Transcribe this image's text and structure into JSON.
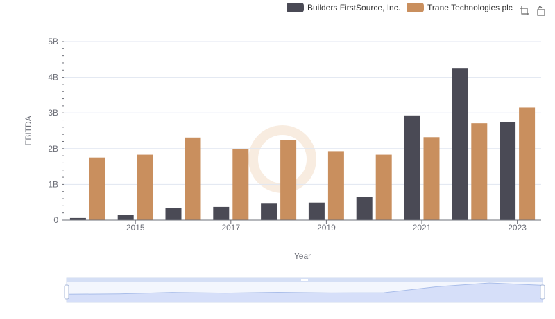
{
  "legend": [
    {
      "label": "Builders FirstSource, Inc.",
      "color": "#4a4a55"
    },
    {
      "label": "Trane Technologies plc",
      "color": "#c98f5e"
    }
  ],
  "toolbox": {
    "icons": [
      "zoom-icon",
      "restore-icon"
    ]
  },
  "chart_data": {
    "type": "bar",
    "xlabel": "Year",
    "ylabel": "EBITDA",
    "ylim": [
      0,
      5000000000
    ],
    "yticks": [
      "0",
      "1B",
      "2B",
      "3B",
      "4B",
      "5B"
    ],
    "x_tick_labels": [
      "2015",
      "2017",
      "2019",
      "2021",
      "2023"
    ],
    "categories": [
      "2014",
      "2015",
      "2016",
      "2017",
      "2018",
      "2019",
      "2020",
      "2021",
      "2022",
      "2023"
    ],
    "series": [
      {
        "name": "Builders FirstSource, Inc.",
        "color": "#4a4a55",
        "values": [
          60000000,
          150000000,
          340000000,
          370000000,
          460000000,
          490000000,
          650000000,
          2930000000,
          4260000000,
          2740000000
        ]
      },
      {
        "name": "Trane Technologies plc",
        "color": "#c98f5e",
        "values": [
          1750000000,
          1830000000,
          2310000000,
          1980000000,
          2240000000,
          1930000000,
          1830000000,
          2320000000,
          2710000000,
          3150000000
        ]
      }
    ],
    "grid": true,
    "legend_position": "top-right",
    "datazoom": true
  }
}
